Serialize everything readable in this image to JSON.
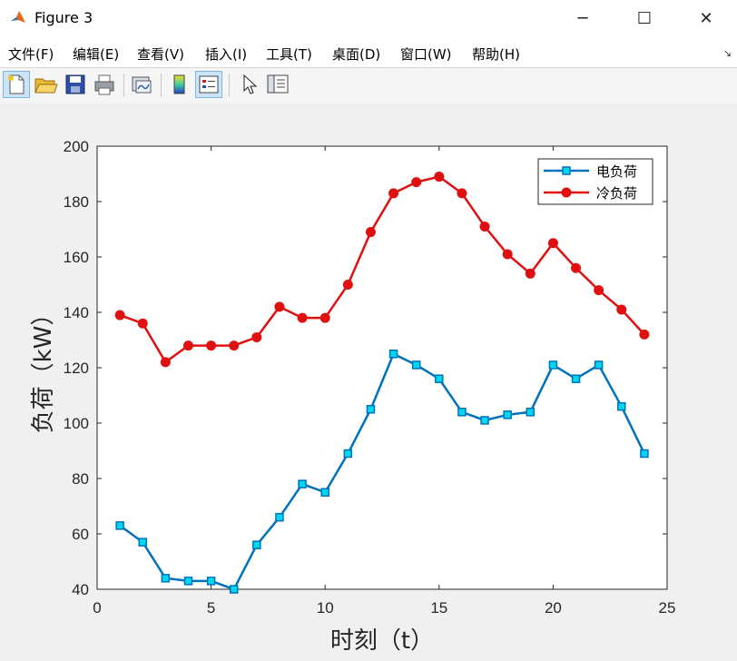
{
  "window": {
    "title": "Figure 3",
    "minimize_glyph": "─",
    "maximize_glyph": "☐",
    "close_glyph": "✕",
    "icon": "matlab-icon"
  },
  "menu": {
    "items": [
      "文件(F)",
      "编辑(E)",
      "查看(V)",
      "插入(I)",
      "工具(T)",
      "桌面(D)",
      "窗口(W)",
      "帮助(H)"
    ],
    "overflow_glyph": "↘"
  },
  "toolbar": {
    "buttons": [
      "new-figure-icon",
      "open-file-icon",
      "save-icon",
      "print-icon",
      "link-plot-icon",
      "colorbar-icon",
      "legend-icon",
      "pointer-icon",
      "property-inspector-icon"
    ],
    "active": [
      "new-figure-icon",
      "legend-icon"
    ]
  },
  "chart_data": {
    "type": "line",
    "title": "",
    "xlabel": "时刻（t）",
    "ylabel": "负荷（kW）",
    "xlim": [
      0,
      25
    ],
    "ylim": [
      40,
      200
    ],
    "xticks": [
      0,
      5,
      10,
      15,
      20,
      25
    ],
    "yticks": [
      40,
      60,
      80,
      100,
      120,
      140,
      160,
      180,
      200
    ],
    "grid": false,
    "legend_position": "top-right",
    "x": [
      1,
      2,
      3,
      4,
      5,
      6,
      7,
      8,
      9,
      10,
      11,
      12,
      13,
      14,
      15,
      16,
      17,
      18,
      19,
      20,
      21,
      22,
      23,
      24
    ],
    "series": [
      {
        "name": "电负荷",
        "marker": "square",
        "line_color": "#0072bd",
        "marker_color": "#00d8f0",
        "values": [
          63,
          57,
          44,
          43,
          43,
          40,
          56,
          66,
          78,
          75,
          89,
          105,
          125,
          121,
          116,
          104,
          101,
          103,
          104,
          121,
          116,
          121,
          106,
          89
        ]
      },
      {
        "name": "冷负荷",
        "marker": "circle",
        "line_color": "#e01010",
        "marker_color": "#e01010",
        "values": [
          139,
          136,
          122,
          128,
          128,
          128,
          131,
          142,
          138,
          138,
          150,
          169,
          183,
          187,
          189,
          183,
          171,
          161,
          154,
          165,
          156,
          148,
          141,
          132
        ]
      }
    ]
  }
}
